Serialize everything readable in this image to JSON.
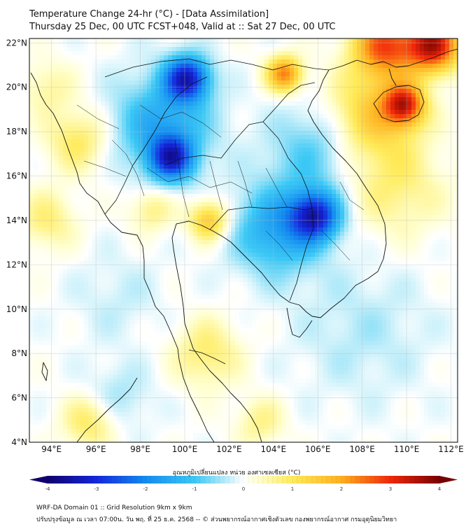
{
  "title": {
    "line1": "Temperature Change 24-hr (°C) - [Data Assimilation]",
    "line2": "Thursday 25 Dec, 00 UTC FCST+048, Valid at :: Sat 27 Dec, 00 UTC"
  },
  "axes": {
    "lat_labels": [
      "22°N",
      "20°N",
      "18°N",
      "16°N",
      "14°N",
      "12°N",
      "10°N",
      "8°N",
      "6°N",
      "4°N"
    ],
    "lat_values": [
      22,
      20,
      18,
      16,
      14,
      12,
      10,
      8,
      6,
      4
    ],
    "lon_labels": [
      "94°E",
      "96°E",
      "98°E",
      "100°E",
      "102°E",
      "104°E",
      "106°E",
      "108°E",
      "110°E",
      "112°E"
    ],
    "lon_values": [
      94,
      96,
      98,
      100,
      102,
      104,
      106,
      108,
      110,
      112
    ],
    "lon_range": [
      93,
      112.3
    ],
    "lat_range": [
      4,
      22.2
    ]
  },
  "colorbar": {
    "label": "อุณหภูมิเปลี่ยนแปลง หน่วย องศาเซลเซียส (°C)",
    "ticks": [
      "-4",
      "-3",
      "-2",
      "-1",
      "0",
      "1",
      "2",
      "3",
      "4"
    ],
    "tick_values": [
      -4,
      -3,
      -2,
      -1,
      0,
      1,
      2,
      3,
      4
    ],
    "min": -4,
    "max": 4
  },
  "footer": {
    "line1": "WRF-DA Domain 01 :: Grid Resolution 9km x 9km",
    "line2": "ปรับปรุงข้อมูล ณ เวลา 07:00น. วัน พฤ. ที่ 25 ธ.ค. 2568 -- © ส่วนพยากรณ์อากาศเชิงตัวเลข กองพยากรณ์อากาศ กรมอุตุนิยมวิทยา"
  },
  "field_anomalies": [
    {
      "lon": 100.1,
      "lat": 20.4,
      "value": -3.0,
      "spread": 1.0
    },
    {
      "lon": 99.4,
      "lat": 16.8,
      "value": -2.6,
      "spread": 1.0
    },
    {
      "lon": 105.9,
      "lat": 14.2,
      "value": -2.8,
      "spread": 1.1
    },
    {
      "lon": 99.0,
      "lat": 18.3,
      "value": -1.5,
      "spread": 2.2
    },
    {
      "lon": 104.2,
      "lat": 13.6,
      "value": -1.6,
      "spread": 2.0
    },
    {
      "lon": 105.8,
      "lat": 17.2,
      "value": -0.9,
      "spread": 2.0
    },
    {
      "lon": 101.1,
      "lat": 14.0,
      "value": 1.6,
      "spread": 0.9
    },
    {
      "lon": 109.9,
      "lat": 19.2,
      "value": 2.7,
      "spread": 0.9
    },
    {
      "lon": 111.2,
      "lat": 21.9,
      "value": 3.4,
      "spread": 1.2
    },
    {
      "lon": 109.0,
      "lat": 21.9,
      "value": 2.6,
      "spread": 1.4
    },
    {
      "lon": 104.5,
      "lat": 20.6,
      "value": 2.3,
      "spread": 0.8
    },
    {
      "lon": 108.5,
      "lat": 18.8,
      "value": 1.5,
      "spread": 2.0
    },
    {
      "lon": 109.5,
      "lat": 15.5,
      "value": 0.8,
      "spread": 2.2
    },
    {
      "lon": 95.2,
      "lat": 17.6,
      "value": 1.0,
      "spread": 1.4
    },
    {
      "lon": 93.8,
      "lat": 20.0,
      "value": 0.6,
      "spread": 1.2
    },
    {
      "lon": 93.8,
      "lat": 14.0,
      "value": 0.8,
      "spread": 1.3
    },
    {
      "lon": 98.5,
      "lat": 14.5,
      "value": 0.8,
      "spread": 1.0
    },
    {
      "lon": 101.0,
      "lat": 8.0,
      "value": 0.9,
      "spread": 1.5
    },
    {
      "lon": 95.7,
      "lat": 4.9,
      "value": 1.0,
      "spread": 1.2
    },
    {
      "lon": 103.4,
      "lat": 4.9,
      "value": 0.7,
      "spread": 1.1
    },
    {
      "lon": 97.0,
      "lat": 10.5,
      "value": -0.3,
      "spread": 2.0
    },
    {
      "lon": 108.0,
      "lat": 9.0,
      "value": -0.4,
      "spread": 3.0
    },
    {
      "lon": 97.0,
      "lat": 6.0,
      "value": -0.5,
      "spread": 1.5
    }
  ],
  "colors": {
    "frame": "#000000",
    "coast": "#111111",
    "grid": "#bbbbbb"
  }
}
